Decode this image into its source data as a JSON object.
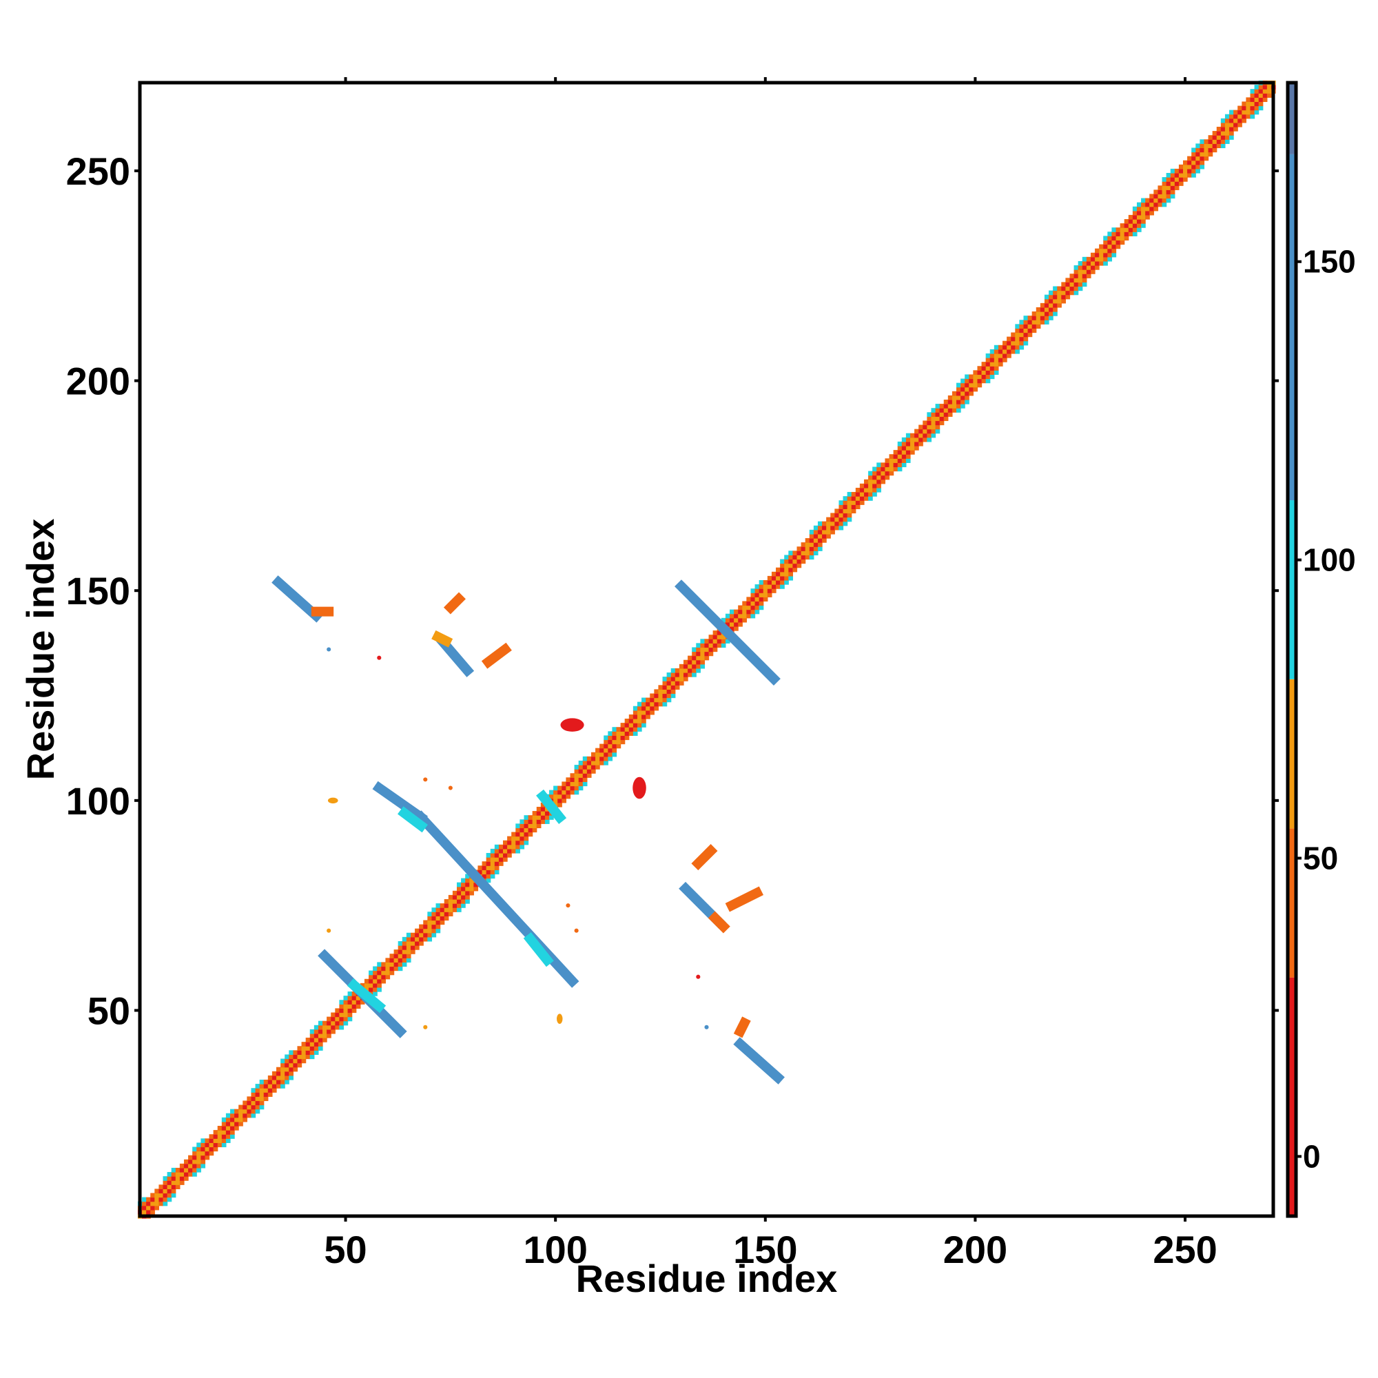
{
  "chart_data": {
    "type": "heatmap",
    "title": "",
    "xlabel": "Residue index",
    "ylabel": "Residue index",
    "xlim": [
      1,
      271
    ],
    "ylim": [
      1,
      271
    ],
    "xticks": [
      50,
      100,
      150,
      200,
      250
    ],
    "yticks": [
      50,
      100,
      150,
      200,
      250
    ],
    "colorbar": {
      "range": [
        -10,
        180
      ],
      "ticks": [
        0,
        50,
        100,
        150
      ],
      "bands": [
        {
          "from": -10,
          "to": 30,
          "color": "#e31a1c"
        },
        {
          "from": 30,
          "to": 55,
          "color": "#f16913"
        },
        {
          "from": 55,
          "to": 80,
          "color": "#f39c12"
        },
        {
          "from": 80,
          "to": 110,
          "color": "#22d3e0"
        },
        {
          "from": 110,
          "to": 168,
          "color": "#4a90c8"
        },
        {
          "from": 168,
          "to": 180,
          "color": "#5a77a8"
        }
      ]
    },
    "colors": {
      "red": "#e31a1c",
      "orange_red": "#f16913",
      "orange": "#f39c12",
      "cyan": "#22d3e0",
      "steel_blue": "#4a90c8"
    },
    "diagonal": {
      "from": 1,
      "to": 271
    },
    "segments": [
      {
        "x": [
          34,
          43
        ],
        "y": [
          152,
          144
        ],
        "value": 150
      },
      {
        "x": [
          43,
          46
        ],
        "y": [
          145,
          145
        ],
        "value": 50
      },
      {
        "x": [
          73,
          79
        ],
        "y": [
          138,
          131
        ],
        "value": 150
      },
      {
        "x": [
          72,
          74
        ],
        "y": [
          139,
          138
        ],
        "value": 60
      },
      {
        "x": [
          75,
          77
        ],
        "y": [
          146,
          148
        ],
        "value": 40
      },
      {
        "x": [
          84,
          88
        ],
        "y": [
          133,
          136
        ],
        "value": 45
      },
      {
        "x": [
          130,
          152
        ],
        "y": [
          151,
          129
        ],
        "value": 150
      },
      {
        "x": [
          58,
          68
        ],
        "y": [
          103,
          96
        ],
        "value": 150
      },
      {
        "x": [
          68,
          104
        ],
        "y": [
          96,
          57
        ],
        "value": 150
      },
      {
        "x": [
          64,
          68
        ],
        "y": [
          97,
          94
        ],
        "value": 100
      },
      {
        "x": [
          94,
          98
        ],
        "y": [
          67,
          62
        ],
        "value": 90
      },
      {
        "x": [
          45,
          63
        ],
        "y": [
          63,
          45
        ],
        "value": 150
      },
      {
        "x": [
          52,
          58
        ],
        "y": [
          56,
          51
        ],
        "value": 100
      },
      {
        "x": [
          131,
          139
        ],
        "y": [
          79,
          71
        ],
        "value": 150
      },
      {
        "x": [
          138,
          140
        ],
        "y": [
          72,
          70
        ],
        "value": 50
      },
      {
        "x": [
          142,
          148
        ],
        "y": [
          75,
          78
        ],
        "value": 30
      },
      {
        "x": [
          134,
          137
        ],
        "y": [
          85,
          88
        ],
        "value": 45
      },
      {
        "x": [
          144,
          153
        ],
        "y": [
          42,
          34
        ],
        "value": 150
      },
      {
        "x": [
          144,
          145
        ],
        "y": [
          45,
          47
        ],
        "value": 50
      },
      {
        "x": [
          97,
          101
        ],
        "y": [
          101,
          96
        ],
        "value": 95
      }
    ],
    "patches": [
      {
        "x": 104,
        "y": 118,
        "rx": 2.8,
        "ry": 1.6,
        "value": 25
      },
      {
        "x": 120,
        "y": 103,
        "rx": 1.6,
        "ry": 2.6,
        "value": 25
      },
      {
        "x": 47,
        "y": 100,
        "rx": 1.2,
        "ry": 0.7,
        "value": 60
      },
      {
        "x": 101,
        "y": 48,
        "rx": 0.7,
        "ry": 1.2,
        "value": 60
      },
      {
        "x": 58,
        "y": 134,
        "rx": 0.5,
        "ry": 0.5,
        "value": 10
      },
      {
        "x": 134,
        "y": 58,
        "rx": 0.5,
        "ry": 0.5,
        "value": 10
      },
      {
        "x": 46,
        "y": 69,
        "rx": 0.5,
        "ry": 0.5,
        "value": 60
      },
      {
        "x": 69,
        "y": 46,
        "rx": 0.5,
        "ry": 0.5,
        "value": 60
      },
      {
        "x": 46,
        "y": 136,
        "rx": 0.5,
        "ry": 0.5,
        "value": 120
      },
      {
        "x": 136,
        "y": 46,
        "rx": 0.5,
        "ry": 0.5,
        "value": 120
      },
      {
        "x": 75,
        "y": 103,
        "rx": 0.5,
        "ry": 0.5,
        "value": 40
      },
      {
        "x": 103,
        "y": 75,
        "rx": 0.5,
        "ry": 0.5,
        "value": 40
      },
      {
        "x": 69,
        "y": 105,
        "rx": 0.5,
        "ry": 0.5,
        "value": 40
      },
      {
        "x": 105,
        "y": 69,
        "rx": 0.5,
        "ry": 0.5,
        "value": 40
      }
    ]
  }
}
